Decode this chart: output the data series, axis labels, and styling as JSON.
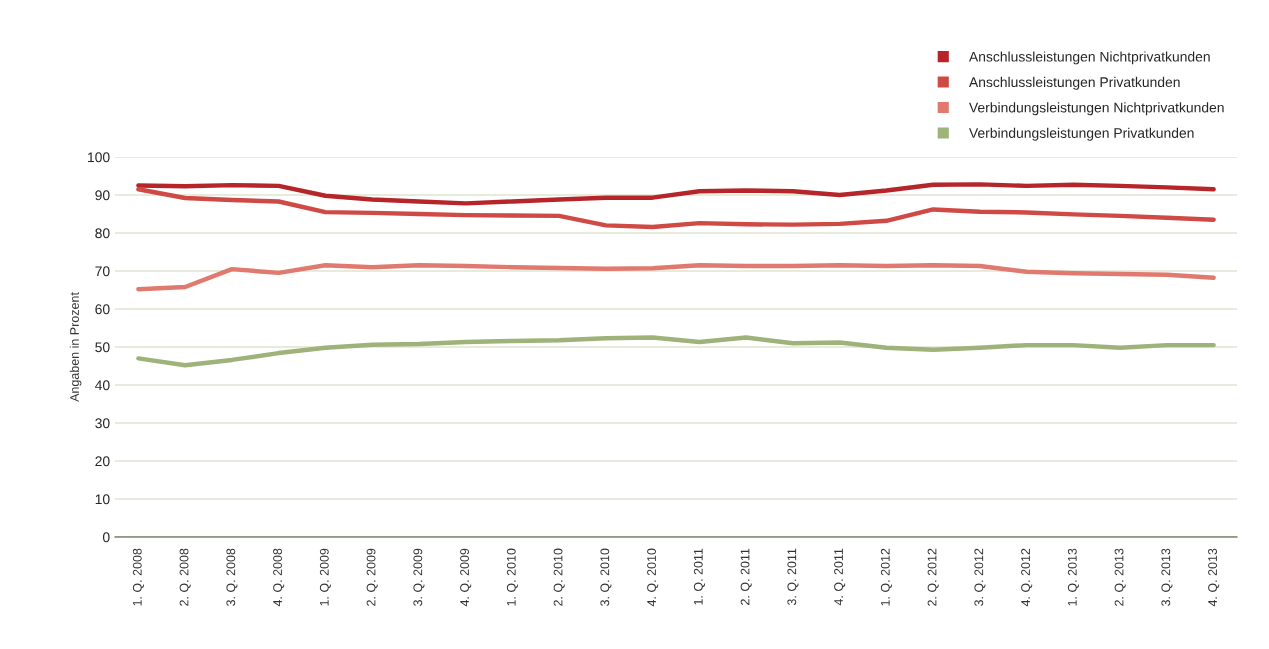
{
  "chart_data": {
    "type": "line",
    "ylabel": "Angaben in Prozent",
    "categories": [
      "1. Q. 2008",
      "2. Q. 2008",
      "3. Q. 2008",
      "4. Q. 2008",
      "1. Q. 2009",
      "2. Q. 2009",
      "3. Q. 2009",
      "4. Q. 2009",
      "1. Q. 2010",
      "2. Q. 2010",
      "3. Q. 2010",
      "4. Q. 2010",
      "1. Q. 2011",
      "2. Q. 2011",
      "3. Q. 2011",
      "4. Q. 2011",
      "1. Q. 2012",
      "2. Q. 2012",
      "3. Q. 2012",
      "4. Q. 2012",
      "1. Q. 2013",
      "2. Q. 2013",
      "3. Q. 2013",
      "4. Q. 2013"
    ],
    "series": [
      {
        "name": "Anschlussleistungen Nichtprivatkunden",
        "color": "#b5252a",
        "values": [
          92.5,
          92.3,
          92.6,
          92.4,
          89.8,
          88.8,
          88.3,
          87.8,
          88.3,
          88.8,
          89.3,
          89.3,
          91,
          91.2,
          91,
          90,
          91.2,
          92.7,
          92.8,
          92.4,
          92.7,
          92.4,
          92,
          91.5
        ]
      },
      {
        "name": "Anschlussleistungen Privatkunden",
        "color": "#cf4a45",
        "values": [
          91.5,
          89.2,
          88.7,
          88.3,
          85.5,
          85.3,
          85,
          84.7,
          84.6,
          84.5,
          82,
          81.6,
          82.6,
          82.3,
          82.2,
          82.4,
          83.2,
          86.2,
          85.6,
          85.4,
          84.9,
          84.5,
          84,
          83.5
        ]
      },
      {
        "name": "Verbindungsleistungen Nichtprivatkunden",
        "color": "#e07a6e",
        "values": [
          65.2,
          65.8,
          70.5,
          69.5,
          71.5,
          71,
          71.5,
          71.3,
          71,
          70.8,
          70.6,
          70.7,
          71.5,
          71.3,
          71.3,
          71.5,
          71.3,
          71.5,
          71.3,
          69.8,
          69.4,
          69.2,
          69,
          68.2
        ]
      },
      {
        "name": "Verbindungsleistungen Privatkunden",
        "color": "#9fb27a",
        "values": [
          47,
          45.2,
          46.6,
          48.4,
          49.8,
          50.6,
          50.8,
          51.3,
          51.6,
          51.8,
          52.3,
          52.5,
          51.3,
          52.5,
          51,
          51.2,
          49.8,
          49.3,
          49.8,
          50.5,
          50.5,
          49.8,
          50.5,
          50.5
        ]
      }
    ],
    "ylim": [
      0,
      100
    ],
    "yticks": [
      0,
      10,
      20,
      30,
      40,
      50,
      60,
      70,
      80,
      90,
      100
    ],
    "grid": "y",
    "legend": "top right",
    "marker": "none",
    "line_style": "solid"
  }
}
